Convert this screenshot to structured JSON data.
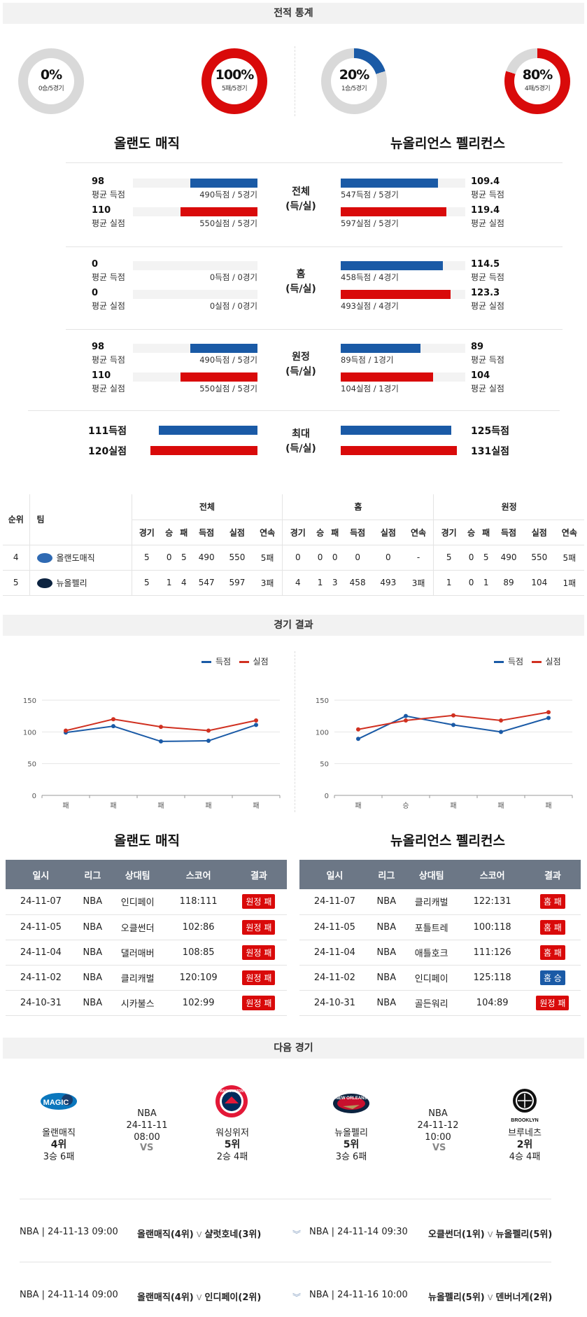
{
  "sections": {
    "record_stats": "전적 통계",
    "game_results": "경기 결과",
    "next_games": "다음 경기"
  },
  "donuts": [
    {
      "pct": "0%",
      "sub": "0승/5경기",
      "fraction": 0.0,
      "color": "#1a5aa6"
    },
    {
      "pct": "100%",
      "sub": "5패/5경기",
      "fraction": 1.0,
      "color": "#d90a0a"
    },
    {
      "pct": "20%",
      "sub": "1승/5경기",
      "fraction": 0.2,
      "color": "#1a5aa6"
    },
    {
      "pct": "80%",
      "sub": "4패/5경기",
      "fraction": 0.8,
      "color": "#d90a0a"
    }
  ],
  "team_left": "올랜도 매직",
  "team_right": "뉴올리언스 펠리컨스",
  "stat_groups": [
    {
      "center_1": "전체",
      "center_2": "(득/실)",
      "left": {
        "score_val": "98",
        "score_lbl": "평균 득점",
        "score_txt": "490득점 / 5경기",
        "score_frac": 0.54,
        "allow_val": "110",
        "allow_lbl": "평균 실점",
        "allow_txt": "550실점 / 5경기",
        "allow_frac": 0.62
      },
      "right": {
        "score_val": "109.4",
        "score_lbl": "평균 득점",
        "score_txt": "547득점 / 5경기",
        "score_frac": 0.78,
        "allow_val": "119.4",
        "allow_lbl": "평균 실점",
        "allow_txt": "597실점 / 5경기",
        "allow_frac": 0.85
      }
    },
    {
      "center_1": "홈",
      "center_2": "(득/실)",
      "left": {
        "score_val": "0",
        "score_lbl": "평균 득점",
        "score_txt": "0득점 / 0경기",
        "score_frac": 0.0,
        "allow_val": "0",
        "allow_lbl": "평균 실점",
        "allow_txt": "0실점 / 0경기",
        "allow_frac": 0.0
      },
      "right": {
        "score_val": "114.5",
        "score_lbl": "평균 득점",
        "score_txt": "458득점 / 4경기",
        "score_frac": 0.82,
        "allow_val": "123.3",
        "allow_lbl": "평균 실점",
        "allow_txt": "493실점 / 4경기",
        "allow_frac": 0.88
      }
    },
    {
      "center_1": "원정",
      "center_2": "(득/실)",
      "left": {
        "score_val": "98",
        "score_lbl": "평균 득점",
        "score_txt": "490득점 / 5경기",
        "score_frac": 0.54,
        "allow_val": "110",
        "allow_lbl": "평균 실점",
        "allow_txt": "550실점 / 5경기",
        "allow_frac": 0.62
      },
      "right": {
        "score_val": "89",
        "score_lbl": "평균 득점",
        "score_txt": "89득점 / 1경기",
        "score_frac": 0.64,
        "allow_val": "104",
        "allow_lbl": "평균 실점",
        "allow_txt": "104실점 / 1경기",
        "allow_frac": 0.74
      }
    }
  ],
  "max_group": {
    "center_1": "최대",
    "center_2": "(득/실)",
    "left_score": "111득점",
    "left_allow": "120실점",
    "left_score_frac": 0.79,
    "left_allow_frac": 0.86,
    "right_score": "125득점",
    "right_allow": "131실점",
    "right_score_frac": 0.89,
    "right_allow_frac": 0.93
  },
  "standings": {
    "groups": [
      "전체",
      "홈",
      "원정"
    ],
    "rank_hdr": "순위",
    "team_hdr": "팀",
    "sub_headers": [
      "경기",
      "승",
      "패",
      "득점",
      "실점",
      "연속"
    ],
    "rows": [
      {
        "rank": "4",
        "team": "올랜도매직",
        "logo_color": "#2f6ab3",
        "all": [
          "5",
          "0",
          "5",
          "490",
          "550",
          "5패"
        ],
        "home": [
          "0",
          "0",
          "0",
          "0",
          "0",
          "-"
        ],
        "away": [
          "5",
          "0",
          "5",
          "490",
          "550",
          "5패"
        ]
      },
      {
        "rank": "5",
        "team": "뉴올펠리",
        "logo_color": "#0c2340",
        "all": [
          "5",
          "1",
          "4",
          "547",
          "597",
          "3패"
        ],
        "home": [
          "4",
          "1",
          "3",
          "458",
          "493",
          "3패"
        ],
        "away": [
          "1",
          "0",
          "1",
          "89",
          "104",
          "1패"
        ]
      }
    ]
  },
  "chart_data": [
    {
      "type": "line",
      "categories": [
        "패",
        "패",
        "패",
        "패",
        "패"
      ],
      "series": [
        {
          "name": "득점",
          "values": [
            99,
            109,
            85,
            86,
            111
          ],
          "color": "#1a5aa6"
        },
        {
          "name": "실점",
          "values": [
            102,
            120,
            108,
            102,
            118
          ],
          "color": "#d03020"
        }
      ],
      "yticks": [
        0,
        50,
        100,
        150
      ],
      "ylim": [
        0,
        150
      ]
    },
    {
      "type": "line",
      "categories": [
        "패",
        "승",
        "패",
        "패",
        "패"
      ],
      "series": [
        {
          "name": "득점",
          "values": [
            89,
            125,
            111,
            100,
            122
          ],
          "color": "#1a5aa6"
        },
        {
          "name": "실점",
          "values": [
            104,
            118,
            126,
            118,
            131
          ],
          "color": "#d03020"
        }
      ],
      "yticks": [
        0,
        50,
        100,
        150
      ],
      "ylim": [
        0,
        150
      ]
    }
  ],
  "results_headers": [
    "일시",
    "리그",
    "상대팀",
    "스코어",
    "결과"
  ],
  "results_left": [
    {
      "date": "24-11-07",
      "league": "NBA",
      "opp": "인디페이",
      "score": "118:111",
      "result": "원정 패",
      "color": "red"
    },
    {
      "date": "24-11-05",
      "league": "NBA",
      "opp": "오클썬더",
      "score": "102:86",
      "result": "원정 패",
      "color": "red"
    },
    {
      "date": "24-11-04",
      "league": "NBA",
      "opp": "댈러매버",
      "score": "108:85",
      "result": "원정 패",
      "color": "red"
    },
    {
      "date": "24-11-02",
      "league": "NBA",
      "opp": "클리캐벌",
      "score": "120:109",
      "result": "원정 패",
      "color": "red"
    },
    {
      "date": "24-10-31",
      "league": "NBA",
      "opp": "시카불스",
      "score": "102:99",
      "result": "원정 패",
      "color": "red"
    }
  ],
  "results_right": [
    {
      "date": "24-11-07",
      "league": "NBA",
      "opp": "클리캐벌",
      "score": "122:131",
      "result": "홈 패",
      "color": "red"
    },
    {
      "date": "24-11-05",
      "league": "NBA",
      "opp": "포틀트레",
      "score": "100:118",
      "result": "홈 패",
      "color": "red"
    },
    {
      "date": "24-11-04",
      "league": "NBA",
      "opp": "애틀호크",
      "score": "111:126",
      "result": "홈 패",
      "color": "red"
    },
    {
      "date": "24-11-02",
      "league": "NBA",
      "opp": "인디페이",
      "score": "125:118",
      "result": "홈 승",
      "color": "blue"
    },
    {
      "date": "24-10-31",
      "league": "NBA",
      "opp": "골든워리",
      "score": "104:89",
      "result": "원정 패",
      "color": "red"
    }
  ],
  "next_left": {
    "league": "NBA",
    "datetime": "24-11-11 08:00",
    "vs": "VS",
    "home_name": "올랜매직",
    "home_rank": "4위",
    "home_rec": "3승 6패",
    "away_name": "워싱위저",
    "away_rank": "5위",
    "away_rec": "2승 4패"
  },
  "next_right": {
    "league": "NBA",
    "datetime": "24-11-12 10:00",
    "vs": "VS",
    "home_name": "뉴올펠리",
    "home_rank": "5위",
    "home_rec": "3승 6패",
    "away_name": "브루네츠",
    "away_rank": "2위",
    "away_rec": "4승 4패"
  },
  "logo_text": {
    "magic": "MAGIC",
    "wizards": "WASHINGTON",
    "pelicans": "NEW ORLEANS",
    "nets": "BROOKLYN"
  },
  "schedule": [
    {
      "left_meta": "NBA | 24-11-13 09:00",
      "left_home": "올랜매직(4위)",
      "left_away": "샬럿호네(3위)",
      "right_meta": "NBA | 24-11-14 09:30",
      "right_home": "오클썬더(1위)",
      "right_away": "뉴올펠리(5위)"
    },
    {
      "left_meta": "NBA | 24-11-14 09:00",
      "left_home": "올랜매직(4위)",
      "left_away": "인디페이(2위)",
      "right_meta": "NBA | 24-11-16 10:00",
      "right_home": "뉴올펠리(5위)",
      "right_away": "덴버너게(2위)"
    }
  ]
}
